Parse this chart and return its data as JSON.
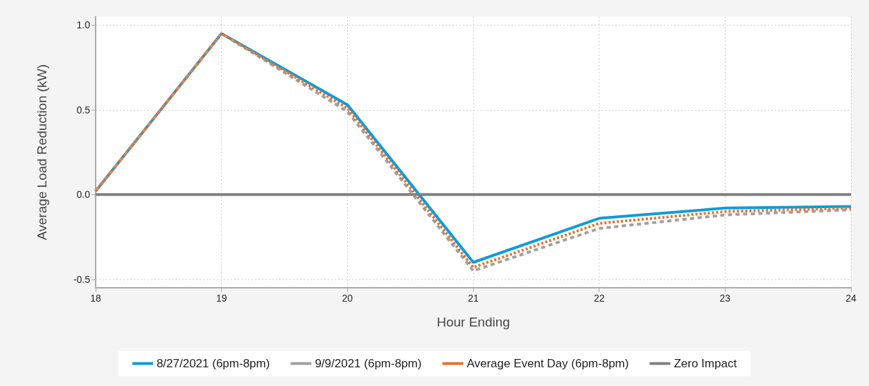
{
  "chart_data": {
    "type": "line",
    "xlabel": "Hour Ending",
    "ylabel": "Average Load Reduction (kW)",
    "x": [
      18,
      19,
      20,
      21,
      22,
      23,
      24
    ],
    "xlim": [
      18,
      24
    ],
    "xticks": [
      18,
      19,
      20,
      21,
      22,
      23,
      24
    ],
    "ylim": [
      -0.55,
      1.05
    ],
    "yticks": [
      {
        "value": -0.5,
        "label": "-0.5"
      },
      {
        "value": 0,
        "label": "0.0"
      },
      {
        "value": 0.5,
        "label": "0.5"
      },
      {
        "value": 1,
        "label": "1.0"
      }
    ],
    "grid": true,
    "legend": "bottom",
    "marker": "none",
    "series": [
      {
        "name": "8/27/2021 (6pm-8pm)",
        "color": "#0e9bd8",
        "line_style": "solid",
        "values": [
          0.02,
          0.95,
          0.53,
          -0.4,
          -0.14,
          -0.08,
          -0.07
        ]
      },
      {
        "name": "9/9/2021 (6pm-8pm)",
        "color": "#a0a0a0",
        "line_style": "dashed",
        "values": [
          0.02,
          0.95,
          0.49,
          -0.45,
          -0.2,
          -0.12,
          -0.09
        ]
      },
      {
        "name": "Average Event Day (6pm-8pm)",
        "color": "#e8702a",
        "line_style": "dotted",
        "values": [
          0.02,
          0.95,
          0.51,
          -0.43,
          -0.17,
          -0.1,
          -0.08
        ]
      },
      {
        "name": "Zero Impact",
        "color": "#7f7f7f",
        "line_style": "solid",
        "values": [
          0,
          0,
          0,
          0,
          0,
          0,
          0
        ]
      }
    ]
  }
}
